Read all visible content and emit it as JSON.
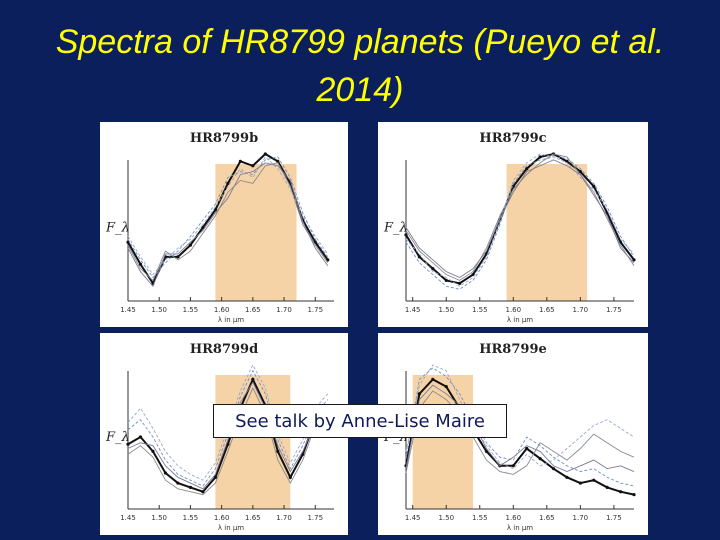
{
  "slide": {
    "title": "Spectra of HR8799 planets (Pueyo et al. 2014)",
    "callout": "See talk by Anne-Lise Maire"
  },
  "colors": {
    "background": "#0b1f5c",
    "title": "#ffff00",
    "band_fill": "#f6d3a6",
    "main_line": "#111111",
    "model_lines": [
      "#6b8fc7",
      "#8a8a8a",
      "#9aa8c8",
      "#7a7a9a"
    ]
  },
  "chart_data": [
    {
      "type": "line",
      "title": "HR8799b",
      "ylabel": "F_λ",
      "xlabel": "λ in μm",
      "xticks": [
        "1.45",
        "1.50",
        "1.55",
        "1.60",
        "1.65",
        "1.70",
        "1.75"
      ],
      "xlim": [
        1.45,
        1.78
      ],
      "ylim": [
        0,
        1
      ],
      "band": [
        1.59,
        1.72
      ],
      "x": [
        1.45,
        1.47,
        1.49,
        1.51,
        1.53,
        1.55,
        1.57,
        1.59,
        1.61,
        1.63,
        1.65,
        1.67,
        1.69,
        1.71,
        1.73,
        1.75,
        1.77
      ],
      "series": [
        {
          "values": [
            0.4,
            0.25,
            0.12,
            0.3,
            0.3,
            0.38,
            0.5,
            0.62,
            0.8,
            0.95,
            0.92,
            1.0,
            0.95,
            0.8,
            0.55,
            0.4,
            0.28
          ]
        },
        {
          "values": [
            0.42,
            0.28,
            0.16,
            0.26,
            0.34,
            0.44,
            0.55,
            0.66,
            0.84,
            0.88,
            0.86,
            0.96,
            0.98,
            0.84,
            0.6,
            0.42,
            0.3
          ]
        },
        {
          "values": [
            0.38,
            0.22,
            0.14,
            0.34,
            0.28,
            0.34,
            0.46,
            0.58,
            0.74,
            0.82,
            0.8,
            0.92,
            0.94,
            0.78,
            0.52,
            0.38,
            0.26
          ]
        },
        {
          "values": [
            0.44,
            0.3,
            0.18,
            0.28,
            0.36,
            0.42,
            0.52,
            0.64,
            0.78,
            0.9,
            0.84,
            0.98,
            0.9,
            0.76,
            0.58,
            0.44,
            0.32
          ]
        },
        {
          "values": [
            0.36,
            0.2,
            0.1,
            0.32,
            0.32,
            0.4,
            0.48,
            0.6,
            0.7,
            0.86,
            0.88,
            0.94,
            0.92,
            0.82,
            0.54,
            0.36,
            0.24
          ]
        }
      ]
    },
    {
      "type": "line",
      "title": "HR8799c",
      "ylabel": "F_λ",
      "xlabel": "λ in μm",
      "xticks": [
        "1.45",
        "1.50",
        "1.55",
        "1.60",
        "1.65",
        "1.70",
        "1.75"
      ],
      "xlim": [
        1.44,
        1.78
      ],
      "ylim": [
        0,
        1
      ],
      "band": [
        1.59,
        1.71
      ],
      "x": [
        1.44,
        1.46,
        1.48,
        1.5,
        1.52,
        1.54,
        1.56,
        1.58,
        1.6,
        1.62,
        1.64,
        1.66,
        1.68,
        1.7,
        1.72,
        1.74,
        1.76,
        1.78
      ],
      "series": [
        {
          "values": [
            0.45,
            0.3,
            0.22,
            0.14,
            0.12,
            0.18,
            0.32,
            0.55,
            0.78,
            0.9,
            0.98,
            1.0,
            0.95,
            0.88,
            0.78,
            0.6,
            0.4,
            0.28
          ]
        },
        {
          "values": [
            0.4,
            0.26,
            0.18,
            0.1,
            0.08,
            0.14,
            0.28,
            0.52,
            0.8,
            0.92,
            0.96,
            0.98,
            0.97,
            0.9,
            0.8,
            0.64,
            0.44,
            0.3
          ]
        },
        {
          "values": [
            0.48,
            0.34,
            0.26,
            0.18,
            0.14,
            0.2,
            0.36,
            0.58,
            0.76,
            0.86,
            0.94,
            1.0,
            0.98,
            0.86,
            0.74,
            0.56,
            0.38,
            0.24
          ]
        },
        {
          "values": [
            0.42,
            0.32,
            0.2,
            0.16,
            0.1,
            0.16,
            0.3,
            0.54,
            0.82,
            0.94,
            1.0,
            0.98,
            0.94,
            0.84,
            0.76,
            0.62,
            0.42,
            0.32
          ]
        },
        {
          "values": [
            0.5,
            0.36,
            0.28,
            0.2,
            0.16,
            0.22,
            0.34,
            0.56,
            0.74,
            0.88,
            0.92,
            0.96,
            0.92,
            0.86,
            0.72,
            0.58,
            0.36,
            0.26
          ]
        }
      ]
    },
    {
      "type": "line",
      "title": "HR8799d",
      "ylabel": "F_λ",
      "xlabel": "λ in μm",
      "xticks": [
        "1.45",
        "1.50",
        "1.55",
        "1.60",
        "1.65",
        "1.70",
        "1.75"
      ],
      "xlim": [
        1.45,
        1.78
      ],
      "ylim": [
        0,
        1
      ],
      "band": [
        1.59,
        1.71
      ],
      "x": [
        1.45,
        1.47,
        1.49,
        1.51,
        1.53,
        1.55,
        1.57,
        1.59,
        1.61,
        1.63,
        1.65,
        1.67,
        1.69,
        1.71,
        1.73,
        1.75,
        1.77
      ],
      "series": [
        {
          "values": [
            0.45,
            0.5,
            0.4,
            0.25,
            0.18,
            0.15,
            0.12,
            0.22,
            0.45,
            0.7,
            0.9,
            0.72,
            0.4,
            0.22,
            0.38,
            0.62,
            0.7
          ]
        },
        {
          "values": [
            0.55,
            0.62,
            0.5,
            0.34,
            0.24,
            0.2,
            0.16,
            0.28,
            0.52,
            0.78,
            0.96,
            0.8,
            0.48,
            0.28,
            0.44,
            0.66,
            0.76
          ]
        },
        {
          "values": [
            0.38,
            0.44,
            0.36,
            0.2,
            0.14,
            0.12,
            0.1,
            0.18,
            0.4,
            0.64,
            0.84,
            0.66,
            0.34,
            0.18,
            0.34,
            0.58,
            0.66
          ]
        },
        {
          "values": [
            0.6,
            0.7,
            0.56,
            0.4,
            0.3,
            0.24,
            0.2,
            0.32,
            0.56,
            0.82,
            1.0,
            0.84,
            0.52,
            0.32,
            0.48,
            0.7,
            0.8
          ]
        },
        {
          "values": [
            0.42,
            0.46,
            0.44,
            0.3,
            0.22,
            0.18,
            0.14,
            0.24,
            0.48,
            0.74,
            0.88,
            0.7,
            0.44,
            0.26,
            0.4,
            0.6,
            0.72
          ]
        }
      ]
    },
    {
      "type": "line",
      "title": "HR8799e",
      "ylabel": "F_λ",
      "xlabel": "λ in μm",
      "xticks": [
        "1.45",
        "1.50",
        "1.55",
        "1.60",
        "1.65",
        "1.70",
        "1.75"
      ],
      "xlim": [
        1.44,
        1.78
      ],
      "ylim": [
        0,
        1
      ],
      "band": [
        1.45,
        1.54
      ],
      "x": [
        1.44,
        1.46,
        1.48,
        1.5,
        1.52,
        1.54,
        1.56,
        1.58,
        1.6,
        1.62,
        1.64,
        1.66,
        1.68,
        1.7,
        1.72,
        1.74,
        1.76,
        1.78
      ],
      "series": [
        {
          "values": [
            0.3,
            0.8,
            0.9,
            0.85,
            0.7,
            0.55,
            0.4,
            0.3,
            0.3,
            0.42,
            0.35,
            0.28,
            0.22,
            0.18,
            0.2,
            0.15,
            0.12,
            0.1
          ]
        },
        {
          "values": [
            0.35,
            0.9,
            0.98,
            0.92,
            0.8,
            0.62,
            0.46,
            0.36,
            0.34,
            0.5,
            0.44,
            0.36,
            0.3,
            0.26,
            0.28,
            0.22,
            0.18,
            0.16
          ]
        },
        {
          "values": [
            0.25,
            0.7,
            0.82,
            0.76,
            0.66,
            0.5,
            0.34,
            0.26,
            0.24,
            0.3,
            0.46,
            0.4,
            0.34,
            0.42,
            0.52,
            0.46,
            0.4,
            0.36
          ]
        },
        {
          "values": [
            0.4,
            0.86,
            1.0,
            0.96,
            0.76,
            0.58,
            0.44,
            0.32,
            0.28,
            0.38,
            0.3,
            0.34,
            0.42,
            0.5,
            0.58,
            0.62,
            0.56,
            0.5
          ]
        },
        {
          "values": [
            0.28,
            0.76,
            0.86,
            0.8,
            0.72,
            0.6,
            0.42,
            0.3,
            0.36,
            0.44,
            0.4,
            0.3,
            0.26,
            0.3,
            0.34,
            0.28,
            0.3,
            0.26
          ]
        }
      ]
    }
  ]
}
